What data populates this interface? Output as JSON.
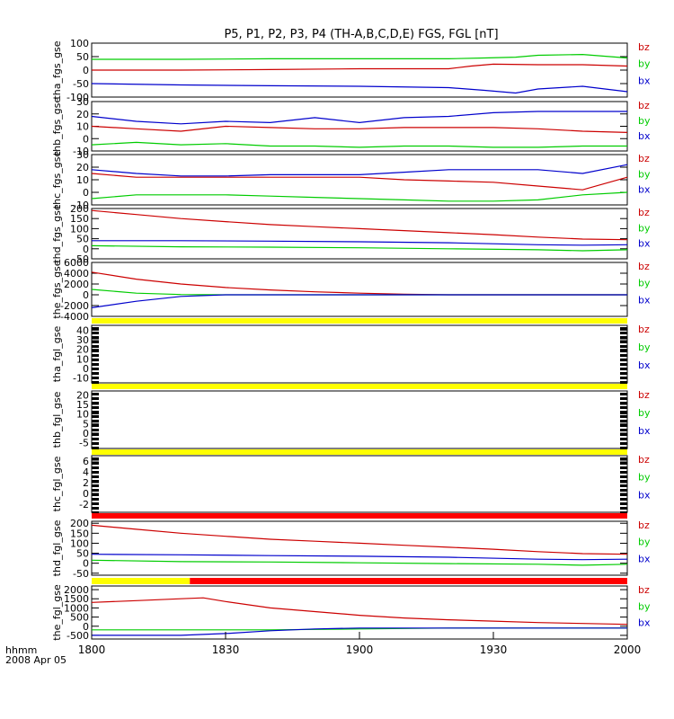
{
  "title": "P5, P1, P2, P3, P4 (TH-A,B,C,D,E) FGS, FGL [nT]",
  "footer": {
    "time_label": "hhmm",
    "date_label": "2008 Apr 05"
  },
  "colors": {
    "bx": "#0000cc",
    "by": "#00cc00",
    "bz": "#cc0000",
    "status_yellow": "#ffff00",
    "status_red": "#ff0000",
    "axis": "#000000"
  },
  "chart_data": {
    "type": "line",
    "x_ticks": [
      "1800",
      "1830",
      "1900",
      "1930",
      "2000"
    ],
    "xlim": [
      "18:00",
      "20:00"
    ],
    "legend_labels": [
      "bz",
      "by",
      "bx"
    ],
    "panels": [
      {
        "ylabel": "tha_fgs_gse",
        "yticks": [
          "100",
          "50",
          "0",
          "-50",
          "-100"
        ],
        "ylim": [
          -100,
          100
        ],
        "series": [
          {
            "name": "bz",
            "t": [
              0,
              20,
              40,
              60,
              80,
              85,
              90,
              100,
              110,
              120
            ],
            "values": [
              0,
              0,
              2,
              5,
              5,
              15,
              22,
              20,
              20,
              15
            ]
          },
          {
            "name": "by",
            "t": [
              0,
              20,
              40,
              60,
              80,
              88,
              95,
              100,
              110,
              120
            ],
            "values": [
              40,
              40,
              42,
              42,
              42,
              45,
              48,
              55,
              58,
              45
            ]
          },
          {
            "name": "bx",
            "t": [
              0,
              20,
              40,
              60,
              80,
              88,
              95,
              100,
              110,
              120
            ],
            "values": [
              -50,
              -55,
              -58,
              -60,
              -65,
              -75,
              -85,
              -70,
              -60,
              -80
            ]
          }
        ]
      },
      {
        "ylabel": "thb_fgs_gse",
        "yticks": [
          "30",
          "20",
          "10",
          "0",
          "-10"
        ],
        "ylim": [
          -10,
          30
        ],
        "series": [
          {
            "name": "bz",
            "t": [
              0,
              10,
              20,
              30,
              40,
              50,
              60,
              70,
              80,
              90,
              100,
              110,
              120
            ],
            "values": [
              10,
              8,
              6,
              10,
              9,
              8,
              8,
              9,
              9,
              9,
              8,
              6,
              5
            ]
          },
          {
            "name": "by",
            "t": [
              0,
              10,
              20,
              30,
              40,
              50,
              60,
              70,
              80,
              90,
              100,
              110,
              120
            ],
            "values": [
              -5,
              -3,
              -5,
              -4,
              -6,
              -6,
              -7,
              -6,
              -6,
              -7,
              -7,
              -6,
              -6
            ]
          },
          {
            "name": "bx",
            "t": [
              0,
              10,
              20,
              30,
              40,
              50,
              60,
              70,
              80,
              90,
              100,
              110,
              120
            ],
            "values": [
              18,
              14,
              12,
              14,
              13,
              17,
              13,
              17,
              18,
              21,
              22,
              22,
              22
            ]
          }
        ]
      },
      {
        "ylabel": "thc_fgs_gse",
        "yticks": [
          "30",
          "20",
          "10",
          "0",
          "-10"
        ],
        "ylim": [
          -10,
          30
        ],
        "series": [
          {
            "name": "bz",
            "t": [
              0,
              10,
              20,
              30,
              40,
              50,
              60,
              70,
              80,
              90,
              100,
              110,
              120
            ],
            "values": [
              15,
              12,
              12,
              12,
              12,
              12,
              12,
              10,
              9,
              8,
              5,
              2,
              12
            ]
          },
          {
            "name": "by",
            "t": [
              0,
              10,
              20,
              30,
              40,
              50,
              60,
              70,
              80,
              90,
              100,
              110,
              120
            ],
            "values": [
              -5,
              -2,
              -2,
              -2,
              -3,
              -4,
              -5,
              -6,
              -7,
              -7,
              -6,
              -2,
              0
            ]
          },
          {
            "name": "bx",
            "t": [
              0,
              10,
              20,
              30,
              40,
              50,
              60,
              70,
              80,
              90,
              100,
              110,
              120
            ],
            "values": [
              18,
              15,
              13,
              13,
              14,
              14,
              14,
              16,
              18,
              18,
              18,
              15,
              22
            ]
          }
        ]
      },
      {
        "ylabel": "thd_fgs_gse",
        "yticks": [
          "200",
          "150",
          "100",
          "50",
          "0",
          "-50"
        ],
        "ylim": [
          -50,
          200
        ],
        "series": [
          {
            "name": "bz",
            "t": [
              0,
              10,
              20,
              30,
              40,
              50,
              60,
              70,
              80,
              90,
              100,
              110,
              120
            ],
            "values": [
              190,
              170,
              150,
              135,
              120,
              110,
              100,
              90,
              80,
              70,
              58,
              48,
              45
            ]
          },
          {
            "name": "by",
            "t": [
              0,
              20,
              40,
              60,
              80,
              100,
              110,
              120
            ],
            "values": [
              15,
              10,
              8,
              5,
              0,
              -5,
              -10,
              -5
            ]
          },
          {
            "name": "bx",
            "t": [
              0,
              20,
              40,
              60,
              80,
              100,
              110,
              120
            ],
            "values": [
              40,
              40,
              38,
              35,
              30,
              20,
              18,
              20
            ]
          }
        ]
      },
      {
        "ylabel": "the_fgs_gse",
        "yticks": [
          "6000",
          "4000",
          "2000",
          "0",
          "-2000",
          "-4000"
        ],
        "ylim": [
          -4000,
          6000
        ],
        "series": [
          {
            "name": "bz",
            "t": [
              0,
              10,
              20,
              30,
              40,
              50,
              60,
              70,
              80,
              120
            ],
            "values": [
              4200,
              2900,
              2000,
              1350,
              900,
              550,
              300,
              100,
              0,
              0
            ]
          },
          {
            "name": "by",
            "t": [
              0,
              10,
              20,
              30,
              120
            ],
            "values": [
              1000,
              300,
              50,
              0,
              0
            ]
          },
          {
            "name": "bx",
            "t": [
              0,
              10,
              20,
              30,
              40,
              120
            ],
            "values": [
              -2400,
              -1200,
              -300,
              0,
              0,
              0
            ]
          }
        ]
      },
      {
        "ylabel": "tha_fgl_gse",
        "yticks": [
          "40",
          "30",
          "20",
          "10",
          "0",
          "-10"
        ],
        "ylim": [
          -15,
          45
        ],
        "series": []
      },
      {
        "ylabel": "thb_fgl_gse",
        "yticks": [
          "20",
          "15",
          "10",
          "5",
          "0",
          "-5"
        ],
        "ylim": [
          -8,
          22
        ],
        "series": []
      },
      {
        "ylabel": "thc_fgl_gse",
        "yticks": [
          "6",
          "4",
          "2",
          "0",
          "-2"
        ],
        "ylim": [
          -3.5,
          7
        ],
        "series": []
      },
      {
        "ylabel": "thd_fgl_gse",
        "yticks": [
          "200",
          "150",
          "100",
          "50",
          "0",
          "-50"
        ],
        "ylim": [
          -60,
          210
        ],
        "series": [
          {
            "name": "bz",
            "t": [
              0,
              10,
              20,
              30,
              40,
              50,
              60,
              70,
              80,
              90,
              100,
              110,
              120
            ],
            "values": [
              190,
              170,
              150,
              135,
              120,
              110,
              100,
              90,
              80,
              70,
              58,
              48,
              45
            ]
          },
          {
            "name": "by",
            "t": [
              0,
              20,
              40,
              60,
              80,
              100,
              110,
              120
            ],
            "values": [
              15,
              8,
              6,
              2,
              -2,
              -5,
              -10,
              -5
            ]
          },
          {
            "name": "bx",
            "t": [
              0,
              20,
              40,
              60,
              80,
              100,
              110,
              120
            ],
            "values": [
              45,
              42,
              38,
              35,
              30,
              20,
              18,
              20
            ]
          }
        ]
      },
      {
        "ylabel": "the_fgl_gse",
        "yticks": [
          "2000",
          "1500",
          "1000",
          "500",
          "0",
          "-500"
        ],
        "ylim": [
          -700,
          2200
        ],
        "series": [
          {
            "name": "bz",
            "t": [
              0,
              10,
              20,
              25,
              30,
              40,
              50,
              60,
              70,
              80,
              90,
              100,
              110,
              120
            ],
            "values": [
              1300,
              1400,
              1500,
              1550,
              1350,
              1000,
              800,
              600,
              450,
              350,
              280,
              200,
              150,
              100
            ]
          },
          {
            "name": "by",
            "t": [
              0,
              20,
              40,
              60,
              80,
              100,
              120
            ],
            "values": [
              -200,
              -200,
              -200,
              -150,
              -100,
              -100,
              -100
            ]
          },
          {
            "name": "bx",
            "t": [
              0,
              20,
              30,
              40,
              50,
              60,
              80,
              100,
              120
            ],
            "values": [
              -500,
              -500,
              -400,
              -250,
              -150,
              -100,
              -100,
              -100,
              -100
            ]
          }
        ]
      }
    ],
    "status_bars": [
      {
        "segments": [
          {
            "color": "status_yellow",
            "t_start": 0,
            "t_end": 120
          }
        ]
      },
      {
        "segments": [
          {
            "color": "status_yellow",
            "t_start": 0,
            "t_end": 120
          }
        ]
      },
      {
        "segments": [
          {
            "color": "status_yellow",
            "t_start": 0,
            "t_end": 120
          }
        ]
      },
      {
        "segments": [
          {
            "color": "status_red",
            "t_start": 0,
            "t_end": 120
          }
        ]
      },
      {
        "segments": [
          {
            "color": "status_yellow",
            "t_start": 0,
            "t_end": 22
          },
          {
            "color": "status_red",
            "t_start": 22,
            "t_end": 120
          }
        ]
      }
    ]
  }
}
